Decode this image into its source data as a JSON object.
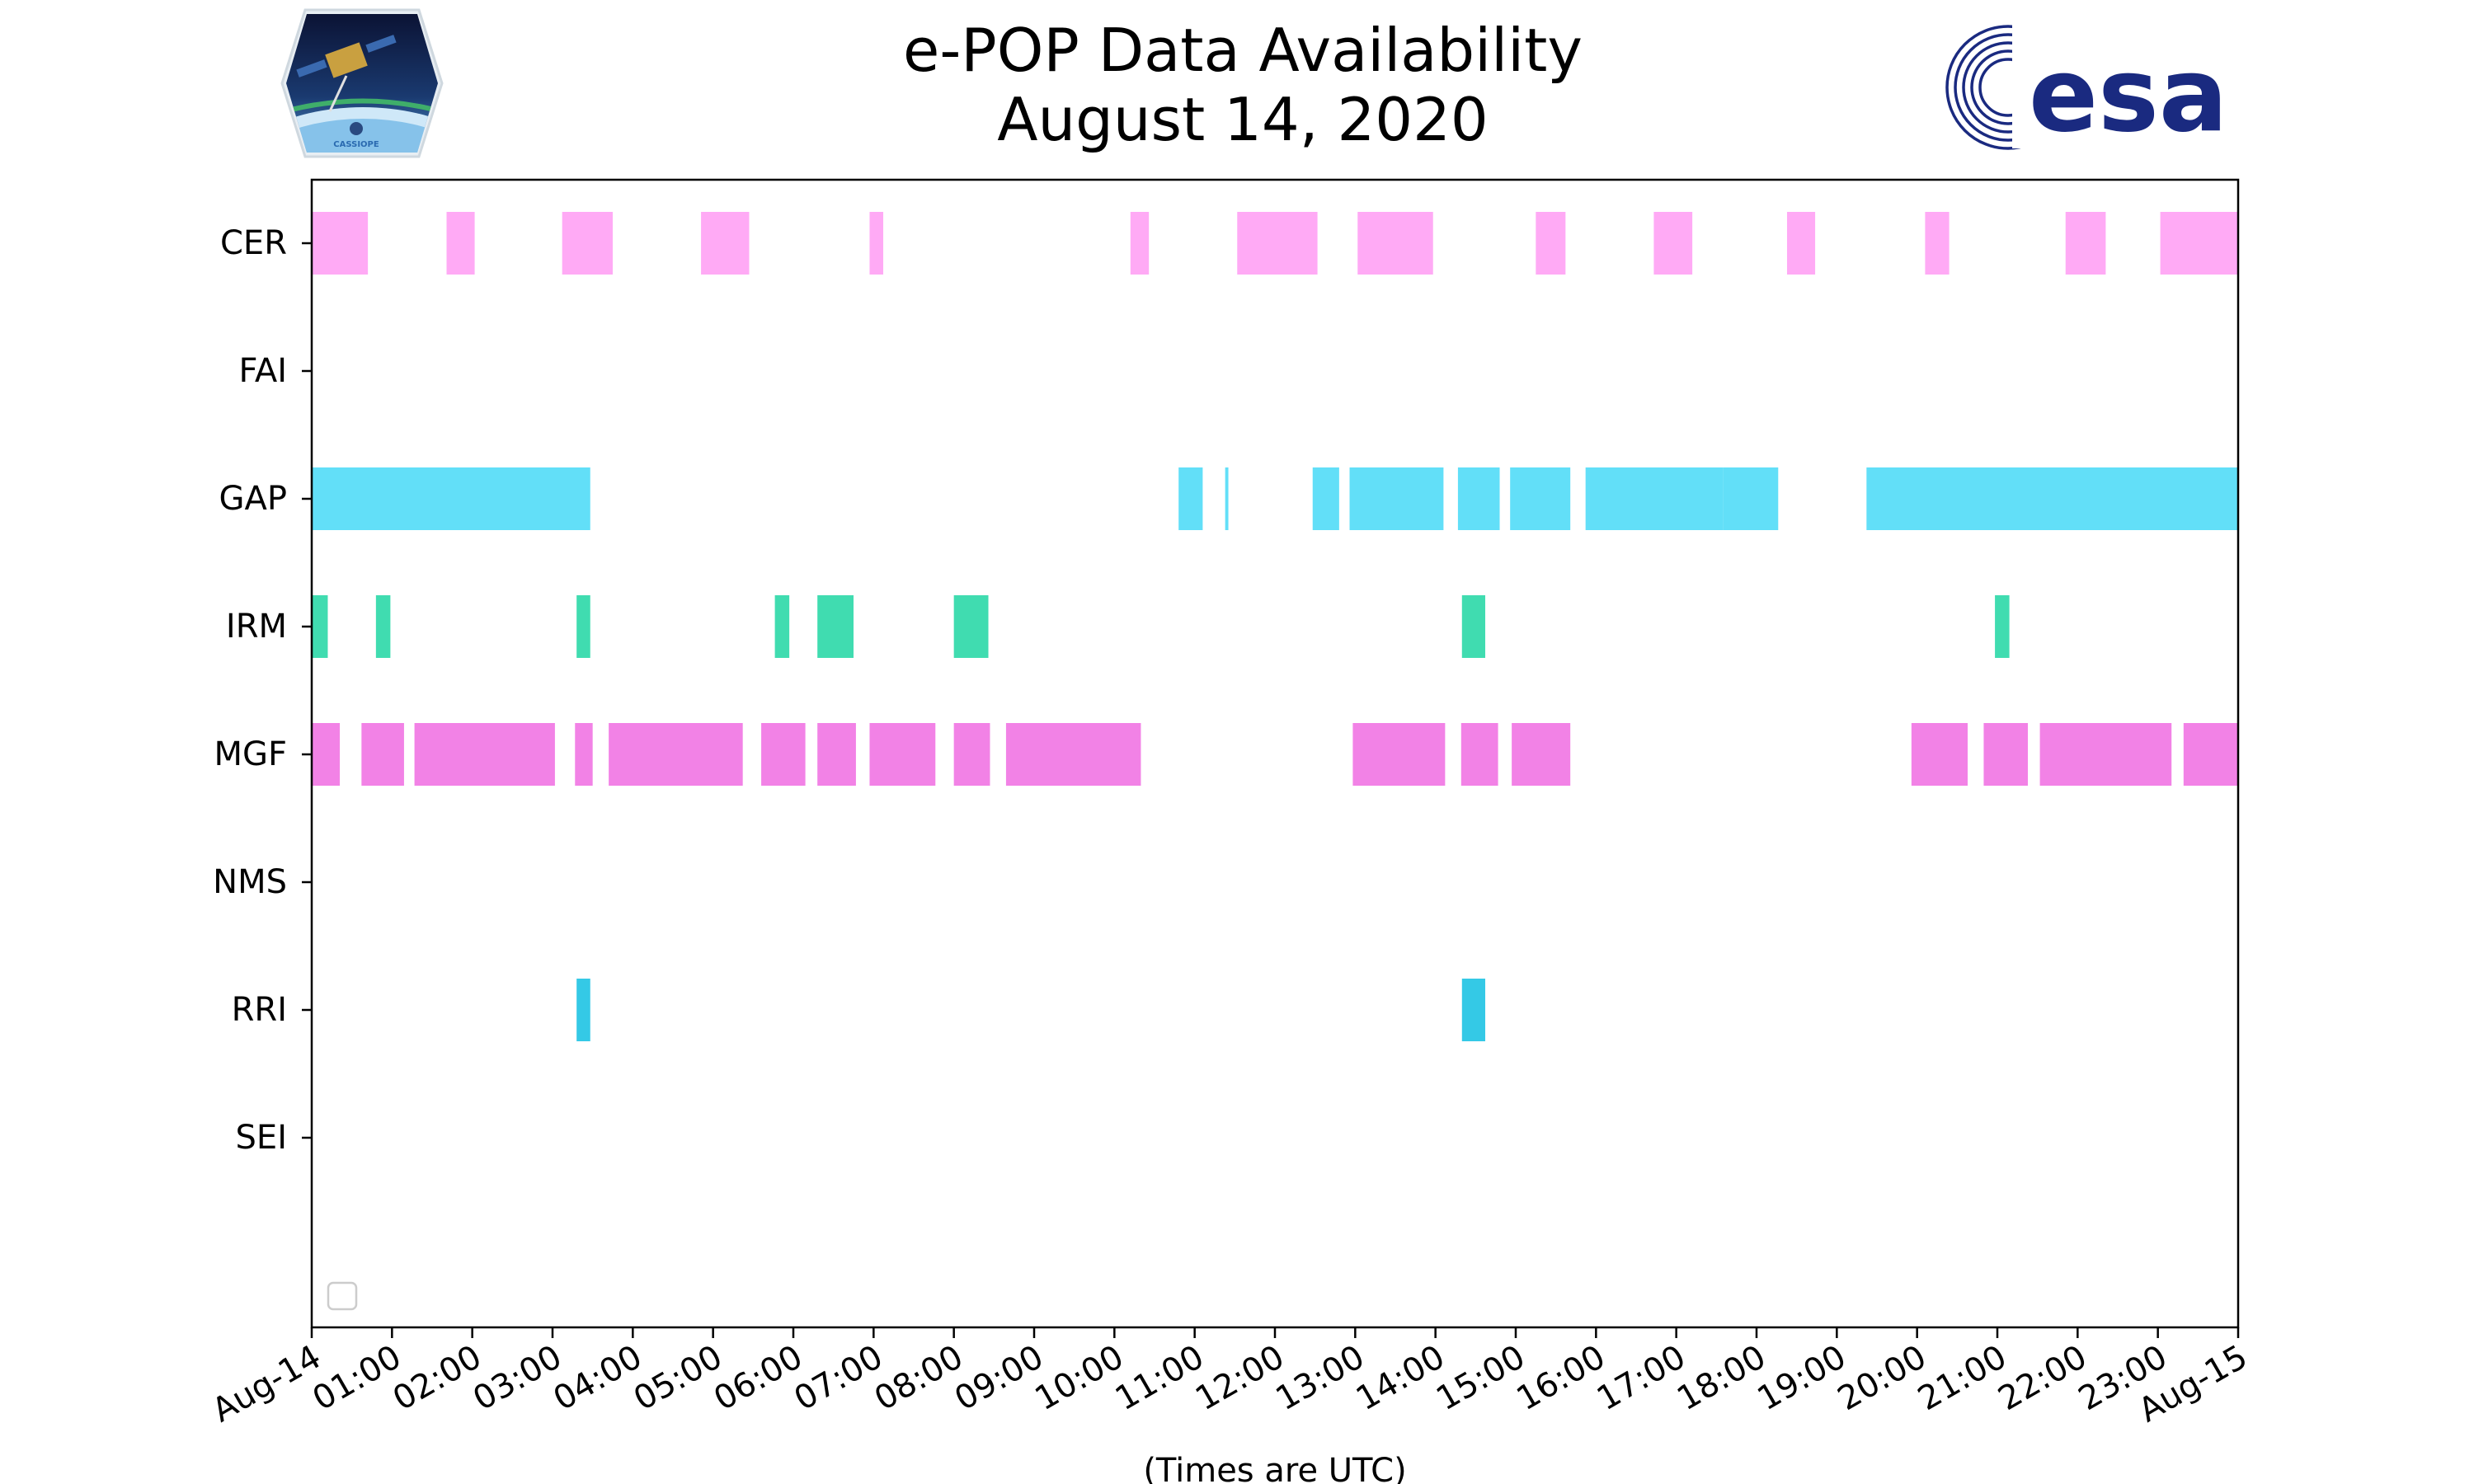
{
  "chart_data": {
    "type": "timeline",
    "title_lines": [
      "e-POP Data Availability",
      "August 14, 2020"
    ],
    "xlabel": "(Times are UTC)",
    "x_unit": "hours",
    "xlim": [
      0,
      24
    ],
    "x_ticks": [
      {
        "value": 0,
        "label": "Aug-14"
      },
      {
        "value": 1,
        "label": "01:00"
      },
      {
        "value": 2,
        "label": "02:00"
      },
      {
        "value": 3,
        "label": "03:00"
      },
      {
        "value": 4,
        "label": "04:00"
      },
      {
        "value": 5,
        "label": "05:00"
      },
      {
        "value": 6,
        "label": "06:00"
      },
      {
        "value": 7,
        "label": "07:00"
      },
      {
        "value": 8,
        "label": "08:00"
      },
      {
        "value": 9,
        "label": "09:00"
      },
      {
        "value": 10,
        "label": "10:00"
      },
      {
        "value": 11,
        "label": "11:00"
      },
      {
        "value": 12,
        "label": "12:00"
      },
      {
        "value": 13,
        "label": "13:00"
      },
      {
        "value": 14,
        "label": "14:00"
      },
      {
        "value": 15,
        "label": "15:00"
      },
      {
        "value": 16,
        "label": "16:00"
      },
      {
        "value": 17,
        "label": "17:00"
      },
      {
        "value": 18,
        "label": "18:00"
      },
      {
        "value": 19,
        "label": "19:00"
      },
      {
        "value": 20,
        "label": "20:00"
      },
      {
        "value": 21,
        "label": "21:00"
      },
      {
        "value": 22,
        "label": "22:00"
      },
      {
        "value": 23,
        "label": "23:00"
      },
      {
        "value": 24,
        "label": "Aug-15"
      }
    ],
    "series": [
      {
        "name": "CER",
        "color": "#ffaaf5",
        "intervals": [
          {
            "start": 0.0,
            "end": 0.7
          },
          {
            "start": 1.68,
            "end": 2.03
          },
          {
            "start": 3.12,
            "end": 3.75
          },
          {
            "start": 4.85,
            "end": 5.45
          },
          {
            "start": 6.95,
            "end": 7.12
          },
          {
            "start": 10.2,
            "end": 10.43
          },
          {
            "start": 11.53,
            "end": 12.53
          },
          {
            "start": 13.03,
            "end": 13.97
          },
          {
            "start": 15.25,
            "end": 15.62
          },
          {
            "start": 16.72,
            "end": 17.2
          },
          {
            "start": 18.38,
            "end": 18.73
          },
          {
            "start": 20.1,
            "end": 20.4
          },
          {
            "start": 21.85,
            "end": 22.35
          },
          {
            "start": 23.03,
            "end": 24.0
          }
        ]
      },
      {
        "name": "FAI",
        "color": "#9ad0f5",
        "intervals": []
      },
      {
        "name": "GAP",
        "color": "#62dff8",
        "intervals": [
          {
            "start": 0.0,
            "end": 3.47
          },
          {
            "start": 10.8,
            "end": 11.1
          },
          {
            "start": 11.38,
            "end": 11.42
          },
          {
            "start": 12.47,
            "end": 12.8
          },
          {
            "start": 12.93,
            "end": 14.1
          },
          {
            "start": 14.28,
            "end": 14.8
          },
          {
            "start": 14.93,
            "end": 15.68
          },
          {
            "start": 15.87,
            "end": 17.58
          },
          {
            "start": 17.58,
            "end": 18.27
          },
          {
            "start": 19.37,
            "end": 24.0
          }
        ]
      },
      {
        "name": "IRM",
        "color": "#40dcb0",
        "intervals": [
          {
            "start": 0.0,
            "end": 0.2
          },
          {
            "start": 0.8,
            "end": 0.98
          },
          {
            "start": 3.3,
            "end": 3.47
          },
          {
            "start": 5.77,
            "end": 5.95
          },
          {
            "start": 6.3,
            "end": 6.75
          },
          {
            "start": 8.0,
            "end": 8.43
          },
          {
            "start": 14.33,
            "end": 14.62
          },
          {
            "start": 20.97,
            "end": 21.15
          }
        ]
      },
      {
        "name": "MGF",
        "color": "#f282e6",
        "intervals": [
          {
            "start": 0.0,
            "end": 0.35
          },
          {
            "start": 0.62,
            "end": 1.15
          },
          {
            "start": 1.28,
            "end": 3.03
          },
          {
            "start": 3.28,
            "end": 3.5
          },
          {
            "start": 3.7,
            "end": 5.37
          },
          {
            "start": 5.6,
            "end": 6.15
          },
          {
            "start": 6.3,
            "end": 6.78
          },
          {
            "start": 6.95,
            "end": 7.77
          },
          {
            "start": 8.0,
            "end": 8.45
          },
          {
            "start": 8.65,
            "end": 10.33
          },
          {
            "start": 12.97,
            "end": 14.12
          },
          {
            "start": 14.32,
            "end": 14.78
          },
          {
            "start": 14.95,
            "end": 15.68
          },
          {
            "start": 19.93,
            "end": 20.63
          },
          {
            "start": 20.83,
            "end": 21.38
          },
          {
            "start": 21.53,
            "end": 23.17
          },
          {
            "start": 23.32,
            "end": 24.0
          }
        ]
      },
      {
        "name": "NMS",
        "color": "#c8a0f0",
        "intervals": []
      },
      {
        "name": "RRI",
        "color": "#34c9e6",
        "intervals": [
          {
            "start": 3.3,
            "end": 3.47
          },
          {
            "start": 14.33,
            "end": 14.62
          }
        ]
      },
      {
        "name": "SEI",
        "color": "#f0c080",
        "intervals": []
      }
    ]
  },
  "logos": {
    "cassiope_text": "CASSIOPE",
    "esa_text": "esa",
    "esa_color": "#1a2a80"
  }
}
